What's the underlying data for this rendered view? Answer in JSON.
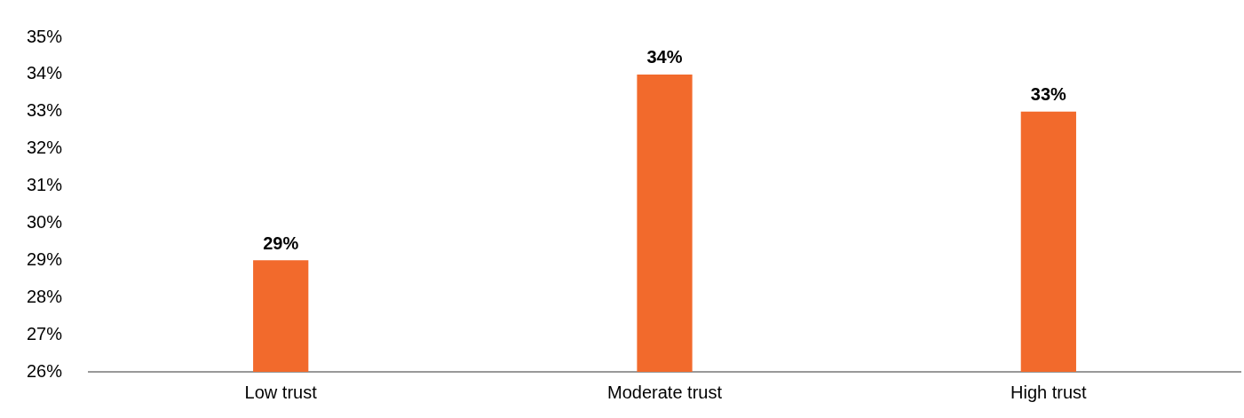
{
  "chart_data": {
    "type": "bar",
    "categories": [
      "Low trust",
      "Moderate trust",
      "High trust"
    ],
    "values": [
      29,
      34,
      33
    ],
    "color": "#f26a2c",
    "value_labels": [
      "29%",
      "34%",
      "33%"
    ],
    "ylim": [
      26,
      35
    ],
    "yticks": [
      {
        "value": 26,
        "label": "26%"
      },
      {
        "value": 27,
        "label": "27%"
      },
      {
        "value": 28,
        "label": "28%"
      },
      {
        "value": 29,
        "label": "29%"
      },
      {
        "value": 30,
        "label": "30%"
      },
      {
        "value": 31,
        "label": "31%"
      },
      {
        "value": 32,
        "label": "32%"
      },
      {
        "value": 33,
        "label": "33%"
      },
      {
        "value": 34,
        "label": "34%"
      },
      {
        "value": 35,
        "label": "35%"
      }
    ],
    "grid": false,
    "legend": false
  }
}
